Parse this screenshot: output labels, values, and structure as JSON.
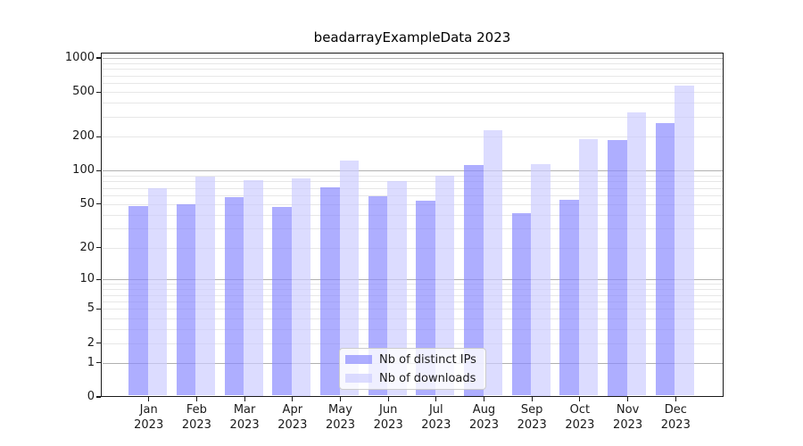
{
  "chart_data": {
    "type": "bar",
    "title": "beadarrayExampleData 2023",
    "yscale": "log10(1+x)",
    "ylim": [
      0,
      1117
    ],
    "yticks": [
      0,
      1,
      2,
      5,
      10,
      20,
      50,
      100,
      200,
      500,
      1000
    ],
    "grid": "horizontal major (powers of 10, darker) + minor (lighter)",
    "categories": [
      "Jan",
      "Feb",
      "Mar",
      "Apr",
      "May",
      "Jun",
      "Jul",
      "Aug",
      "Sep",
      "Oct",
      "Nov",
      "Dec"
    ],
    "category_year": "2023",
    "series": [
      {
        "name": "Nb of distinct IPs",
        "color": "#8888ff",
        "values": [
          48,
          50,
          58,
          47,
          71,
          59,
          54,
          112,
          41,
          55,
          187,
          265
        ]
      },
      {
        "name": "Nb of downloads",
        "color": "#ccccff",
        "values": [
          69,
          88,
          82,
          85,
          122,
          81,
          90,
          230,
          114,
          191,
          330,
          573
        ]
      }
    ],
    "legend_position": "lower center"
  },
  "colors": {
    "bar_distinct_ips": "#8888ff",
    "bar_downloads": "#ccccff",
    "bar_alpha": 0.68,
    "grid_major": "#b0b0b0",
    "grid_minor": "#e7e7e7",
    "axis": "#1a1a1a",
    "legend_border": "#cccccc",
    "background": "#ffffff"
  }
}
